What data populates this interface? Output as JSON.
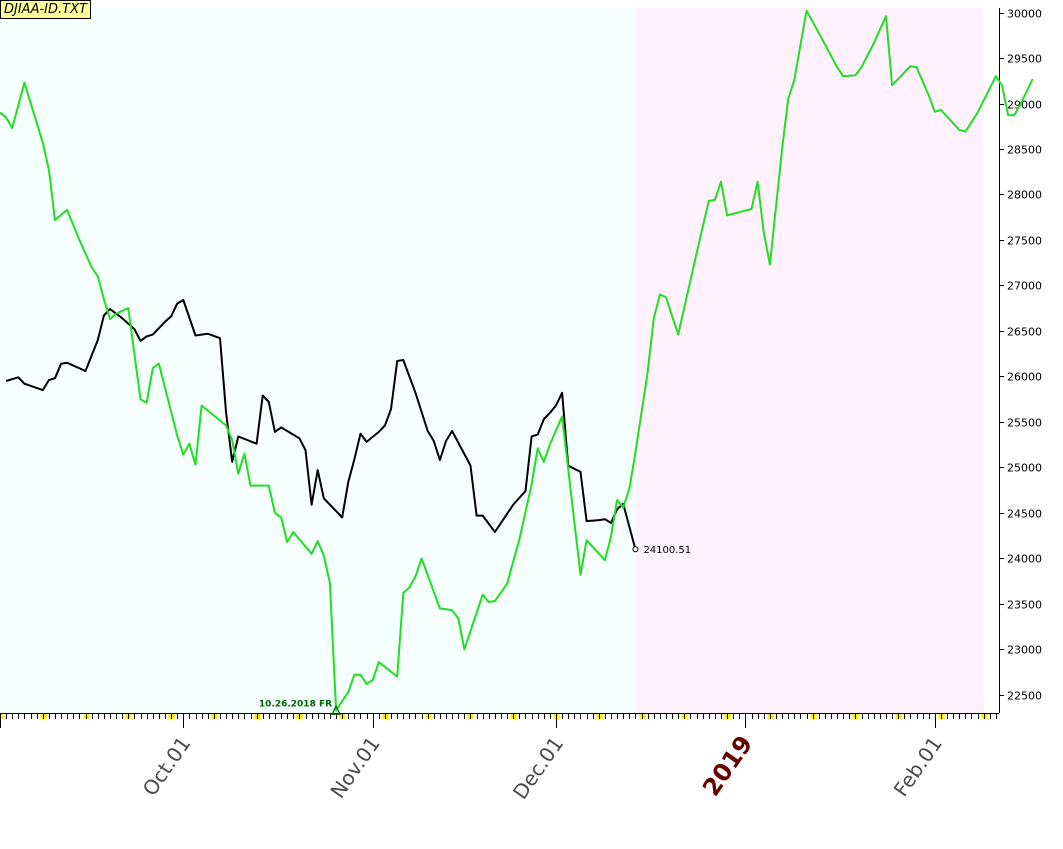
{
  "chart_data": {
    "type": "line",
    "title": "DJIAA-ID.TXT",
    "y_axis": {
      "side": "right",
      "range": [
        22300,
        30050
      ],
      "ticks": [
        22500,
        23000,
        23500,
        24000,
        24500,
        25000,
        25500,
        26000,
        26500,
        27000,
        27500,
        28000,
        28500,
        29000,
        29500,
        30000
      ]
    },
    "x_axis": {
      "labels": [
        {
          "text": "Oct.01",
          "x": "2018-10-01",
          "emphasis": false
        },
        {
          "text": "Nov.01",
          "x": "2018-11-01",
          "emphasis": false
        },
        {
          "text": "Dec.01",
          "x": "2018-12-01",
          "emphasis": false
        },
        {
          "text": "2019",
          "x": "2019-01-01",
          "emphasis": true
        },
        {
          "text": "Feb.01",
          "x": "2019-02-01",
          "emphasis": false
        }
      ]
    },
    "shaded_regions": [
      {
        "from": "2018-09-01",
        "to": "2018-12-14",
        "color": "#f5fffd"
      },
      {
        "from": "2018-12-14",
        "to": "2019-02-09",
        "color": "#fff2fd"
      }
    ],
    "series": [
      {
        "color": "#000000",
        "points": [
          [
            "2018-09-02",
            25950
          ],
          [
            "2018-09-04",
            25990
          ],
          [
            "2018-09-05",
            25920
          ],
          [
            "2018-09-08",
            25850
          ],
          [
            "2018-09-09",
            25960
          ],
          [
            "2018-09-10",
            25980
          ],
          [
            "2018-09-11",
            26140
          ],
          [
            "2018-09-12",
            26150
          ],
          [
            "2018-09-15",
            26060
          ],
          [
            "2018-09-17",
            26400
          ],
          [
            "2018-09-18",
            26670
          ],
          [
            "2018-09-19",
            26740
          ],
          [
            "2018-09-21",
            26640
          ],
          [
            "2018-09-23",
            26520
          ],
          [
            "2018-09-24",
            26390
          ],
          [
            "2018-09-25",
            26440
          ],
          [
            "2018-09-26",
            26460
          ],
          [
            "2018-09-28",
            26600
          ],
          [
            "2018-09-29",
            26660
          ],
          [
            "2018-09-30",
            26800
          ],
          [
            "2018-10-01",
            26840
          ],
          [
            "2018-10-03",
            26450
          ],
          [
            "2018-10-05",
            26470
          ],
          [
            "2018-10-07",
            26420
          ],
          [
            "2018-10-08",
            25600
          ],
          [
            "2018-10-09",
            25060
          ],
          [
            "2018-10-10",
            25340
          ],
          [
            "2018-10-13",
            25260
          ],
          [
            "2018-10-14",
            25790
          ],
          [
            "2018-10-15",
            25720
          ],
          [
            "2018-10-16",
            25390
          ],
          [
            "2018-10-17",
            25440
          ],
          [
            "2018-10-19",
            25360
          ],
          [
            "2018-10-20",
            25320
          ],
          [
            "2018-10-21",
            25190
          ],
          [
            "2018-10-22",
            24590
          ],
          [
            "2018-10-23",
            24970
          ],
          [
            "2018-10-24",
            24660
          ],
          [
            "2018-10-27",
            24450
          ],
          [
            "2018-10-28",
            24840
          ],
          [
            "2018-10-29",
            25090
          ],
          [
            "2018-10-30",
            25370
          ],
          [
            "2018-10-31",
            25280
          ],
          [
            "2018-11-02",
            25390
          ],
          [
            "2018-11-03",
            25460
          ],
          [
            "2018-11-04",
            25640
          ],
          [
            "2018-11-05",
            26170
          ],
          [
            "2018-11-06",
            26180
          ],
          [
            "2018-11-08",
            25820
          ],
          [
            "2018-11-10",
            25400
          ],
          [
            "2018-11-11",
            25290
          ],
          [
            "2018-11-12",
            25080
          ],
          [
            "2018-11-13",
            25290
          ],
          [
            "2018-11-14",
            25400
          ],
          [
            "2018-11-17",
            25020
          ],
          [
            "2018-11-18",
            24470
          ],
          [
            "2018-11-19",
            24470
          ],
          [
            "2018-11-21",
            24290
          ],
          [
            "2018-11-24",
            24590
          ],
          [
            "2018-11-26",
            24740
          ],
          [
            "2018-11-27",
            25340
          ],
          [
            "2018-11-28",
            25360
          ],
          [
            "2018-11-29",
            25530
          ],
          [
            "2018-11-30",
            25600
          ],
          [
            "2018-12-01",
            25680
          ],
          [
            "2018-12-02",
            25820
          ],
          [
            "2018-12-03",
            25020
          ],
          [
            "2018-12-05",
            24950
          ],
          [
            "2018-12-06",
            24410
          ],
          [
            "2018-12-08",
            24420
          ],
          [
            "2018-12-09",
            24430
          ],
          [
            "2018-12-10",
            24390
          ],
          [
            "2018-12-11",
            24540
          ],
          [
            "2018-12-12",
            24600
          ],
          [
            "2018-12-14",
            24100.51
          ]
        ],
        "end_label": "24100.51"
      },
      {
        "color": "#22dd22",
        "points": [
          [
            "2018-09-01",
            28900
          ],
          [
            "2018-09-02",
            28850
          ],
          [
            "2018-09-03",
            28730
          ],
          [
            "2018-09-05",
            29230
          ],
          [
            "2018-09-08",
            28570
          ],
          [
            "2018-09-09",
            28270
          ],
          [
            "2018-09-10",
            27720
          ],
          [
            "2018-09-12",
            27830
          ],
          [
            "2018-09-14",
            27500
          ],
          [
            "2018-09-16",
            27200
          ],
          [
            "2018-09-17",
            27100
          ],
          [
            "2018-09-18",
            26850
          ],
          [
            "2018-09-19",
            26630
          ],
          [
            "2018-09-20",
            26690
          ],
          [
            "2018-09-22",
            26750
          ],
          [
            "2018-09-24",
            25750
          ],
          [
            "2018-09-25",
            25710
          ],
          [
            "2018-09-26",
            26090
          ],
          [
            "2018-09-27",
            26140
          ],
          [
            "2018-09-30",
            25350
          ],
          [
            "2018-10-01",
            25140
          ],
          [
            "2018-10-02",
            25260
          ],
          [
            "2018-10-03",
            25030
          ],
          [
            "2018-10-04",
            25680
          ],
          [
            "2018-10-08",
            25460
          ],
          [
            "2018-10-09",
            25300
          ],
          [
            "2018-10-10",
            24930
          ],
          [
            "2018-10-11",
            25150
          ],
          [
            "2018-10-12",
            24800
          ],
          [
            "2018-10-15",
            24800
          ],
          [
            "2018-10-16",
            24500
          ],
          [
            "2018-10-17",
            24450
          ],
          [
            "2018-10-18",
            24180
          ],
          [
            "2018-10-19",
            24290
          ],
          [
            "2018-10-22",
            24050
          ],
          [
            "2018-10-23",
            24190
          ],
          [
            "2018-10-24",
            24030
          ],
          [
            "2018-10-25",
            23730
          ],
          [
            "2018-10-26",
            22330
          ],
          [
            "2018-10-28",
            22530
          ],
          [
            "2018-10-29",
            22720
          ],
          [
            "2018-10-30",
            22720
          ],
          [
            "2018-10-31",
            22620
          ],
          [
            "2018-11-01",
            22660
          ],
          [
            "2018-11-02",
            22860
          ],
          [
            "2018-11-05",
            22700
          ],
          [
            "2018-11-06",
            23620
          ],
          [
            "2018-11-07",
            23680
          ],
          [
            "2018-11-08",
            23800
          ],
          [
            "2018-11-09",
            24000
          ],
          [
            "2018-11-12",
            23450
          ],
          [
            "2018-11-13",
            23440
          ],
          [
            "2018-11-14",
            23430
          ],
          [
            "2018-11-15",
            23340
          ],
          [
            "2018-11-16",
            23000
          ],
          [
            "2018-11-19",
            23600
          ],
          [
            "2018-11-20",
            23520
          ],
          [
            "2018-11-21",
            23530
          ],
          [
            "2018-11-23",
            23720
          ],
          [
            "2018-11-25",
            24210
          ],
          [
            "2018-11-27",
            24810
          ],
          [
            "2018-11-28",
            25210
          ],
          [
            "2018-11-29",
            25060
          ],
          [
            "2018-11-30",
            25250
          ],
          [
            "2018-12-02",
            25560
          ],
          [
            "2018-12-05",
            23820
          ],
          [
            "2018-12-06",
            24200
          ],
          [
            "2018-12-09",
            23980
          ],
          [
            "2018-12-10",
            24240
          ],
          [
            "2018-12-11",
            24640
          ],
          [
            "2018-12-12",
            24560
          ],
          [
            "2018-12-13",
            24760
          ],
          [
            "2018-12-14",
            25160
          ],
          [
            "2018-12-16",
            26050
          ],
          [
            "2018-12-17",
            26640
          ],
          [
            "2018-12-18",
            26900
          ],
          [
            "2018-12-19",
            26870
          ],
          [
            "2018-12-21",
            26460
          ],
          [
            "2018-12-24",
            27350
          ],
          [
            "2018-12-26",
            27930
          ],
          [
            "2018-12-27",
            27940
          ],
          [
            "2018-12-28",
            28140
          ],
          [
            "2018-12-29",
            27770
          ],
          [
            "2019-01-02",
            27840
          ],
          [
            "2019-01-03",
            28140
          ],
          [
            "2019-01-04",
            27580
          ],
          [
            "2019-01-05",
            27230
          ],
          [
            "2019-01-07",
            28500
          ],
          [
            "2019-01-08",
            29050
          ],
          [
            "2019-01-09",
            29260
          ],
          [
            "2019-01-10",
            29640
          ],
          [
            "2019-01-11",
            30020
          ],
          [
            "2019-01-13",
            29780
          ],
          [
            "2019-01-16",
            29400
          ],
          [
            "2019-01-17",
            29300
          ],
          [
            "2019-01-19",
            29310
          ],
          [
            "2019-01-20",
            29400
          ],
          [
            "2019-01-22",
            29660
          ],
          [
            "2019-01-24",
            29960
          ],
          [
            "2019-01-25",
            29200
          ],
          [
            "2019-01-28",
            29410
          ],
          [
            "2019-01-29",
            29400
          ],
          [
            "2019-01-31",
            29090
          ],
          [
            "2019-02-01",
            28910
          ],
          [
            "2019-02-02",
            28930
          ],
          [
            "2019-02-05",
            28710
          ],
          [
            "2019-02-06",
            28690
          ],
          [
            "2019-02-08",
            28900
          ],
          [
            "2019-02-11",
            29300
          ],
          [
            "2019-02-12",
            29200
          ],
          [
            "2019-02-13",
            28870
          ],
          [
            "2019-02-14",
            28870
          ],
          [
            "2019-02-15",
            28990
          ],
          [
            "2019-02-17",
            29270
          ]
        ],
        "low_marker": {
          "x": "2018-10-26",
          "y": 22330,
          "label": "10.26.2018 FR"
        }
      }
    ]
  },
  "colors": {
    "region_past": "#f5fffd",
    "region_future": "#fff2fd",
    "black_series": "#000000",
    "green_series": "#22dd22",
    "low_label": "#006600",
    "tick_highlight": "#ffee00",
    "axis_label": "#4a4a4a",
    "year_label": "#660000"
  }
}
